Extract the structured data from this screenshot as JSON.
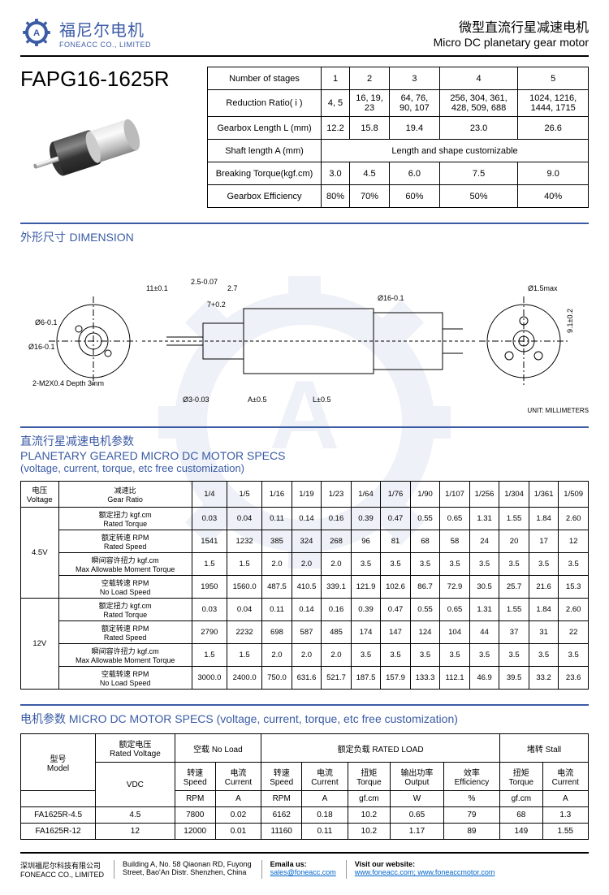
{
  "company": {
    "name_cn": "福尼尔电机",
    "name_en": "FONEACC CO., LIMITED",
    "brand_color": "#3b5ba5"
  },
  "header": {
    "title_cn": "微型直流行星减速电机",
    "title_en": "Micro DC planetary gear motor"
  },
  "model": "FAPG16-1625R",
  "stages_table": {
    "headers": [
      "Number of stages",
      "1",
      "2",
      "3",
      "4",
      "5"
    ],
    "rows": [
      {
        "label": "Reduction Ratio( i )",
        "vals": [
          "4, 5",
          "16, 19, 23",
          "64, 76, 90, 107",
          "256, 304, 361, 428, 509, 688",
          "1024, 1216, 1444, 1715"
        ]
      },
      {
        "label": "Gearbox Length L (mm)",
        "vals": [
          "12.2",
          "15.8",
          "19.4",
          "23.0",
          "26.6"
        ]
      },
      {
        "label": "Shaft length A (mm)",
        "vals": [
          "Length and shape customizable"
        ],
        "span": 5
      },
      {
        "label": "Breaking Torque(kgf.cm)",
        "vals": [
          "3.0",
          "4.5",
          "6.0",
          "7.5",
          "9.0"
        ]
      },
      {
        "label": "Gearbox Efficiency",
        "vals": [
          "80%",
          "70%",
          "60%",
          "50%",
          "40%"
        ]
      }
    ]
  },
  "dimension": {
    "title_cn": "外形尺寸",
    "title_en": "DIMENSION",
    "unit": "UNIT: MILLIMETERS",
    "labels": {
      "d6": "Ø6-0.1",
      "d16a": "Ø16-0.1",
      "hole": "2-M2X0.4 Depth 3mm",
      "s11": "11±0.1",
      "s25": "2.5-0.07",
      "s27": "2.7",
      "s7": "7+0.2",
      "d3": "Ø3-0.03",
      "a": "A±0.5",
      "l": "L±0.5",
      "d16b": "Ø16-0.1",
      "d15": "Ø1.5max",
      "s91": "9.1±0.2"
    }
  },
  "specs_section": {
    "title_cn": "直流行星减速电机参数",
    "title_en": "PLANETARY GEARED MICRO DC MOTOR SPECS",
    "subtitle": "(voltage, current, torque, etc free customization)",
    "voltage_header_cn": "电压",
    "voltage_header_en": "Voltage",
    "ratio_header_cn": "减速比",
    "ratio_header_en": "Gear Ratio",
    "ratios": [
      "1/4",
      "1/5",
      "1/16",
      "1/19",
      "1/23",
      "1/64",
      "1/76",
      "1/90",
      "1/107",
      "1/256",
      "1/304",
      "1/361",
      "1/509"
    ],
    "row_labels": [
      {
        "cn": "额定扭力 kgf.cm",
        "en": "Rated Torque"
      },
      {
        "cn": "额定转速 RPM",
        "en": "Rated Speed"
      },
      {
        "cn": "瞬间容许扭力 kgf.cm",
        "en": "Max Allowable Moment Torque"
      },
      {
        "cn": "空载转速 RPM",
        "en": "No Load Speed"
      }
    ],
    "groups": [
      {
        "voltage": "4.5V",
        "rows": [
          [
            "0.03",
            "0.04",
            "0.11",
            "0.14",
            "0.16",
            "0.39",
            "0.47",
            "0.55",
            "0.65",
            "1.31",
            "1.55",
            "1.84",
            "2.60"
          ],
          [
            "1541",
            "1232",
            "385",
            "324",
            "268",
            "96",
            "81",
            "68",
            "58",
            "24",
            "20",
            "17",
            "12"
          ],
          [
            "1.5",
            "1.5",
            "2.0",
            "2.0",
            "2.0",
            "3.5",
            "3.5",
            "3.5",
            "3.5",
            "3.5",
            "3.5",
            "3.5",
            "3.5"
          ],
          [
            "1950",
            "1560.0",
            "487.5",
            "410.5",
            "339.1",
            "121.9",
            "102.6",
            "86.7",
            "72.9",
            "30.5",
            "25.7",
            "21.6",
            "15.3"
          ]
        ]
      },
      {
        "voltage": "12V",
        "rows": [
          [
            "0.03",
            "0.04",
            "0.11",
            "0.14",
            "0.16",
            "0.39",
            "0.47",
            "0.55",
            "0.65",
            "1.31",
            "1.55",
            "1.84",
            "2.60"
          ],
          [
            "2790",
            "2232",
            "698",
            "587",
            "485",
            "174",
            "147",
            "124",
            "104",
            "44",
            "37",
            "31",
            "22"
          ],
          [
            "1.5",
            "1.5",
            "2.0",
            "2.0",
            "2.0",
            "3.5",
            "3.5",
            "3.5",
            "3.5",
            "3.5",
            "3.5",
            "3.5",
            "3.5"
          ],
          [
            "3000.0",
            "2400.0",
            "750.0",
            "631.6",
            "521.7",
            "187.5",
            "157.9",
            "133.3",
            "112.1",
            "46.9",
            "39.5",
            "33.2",
            "23.6"
          ]
        ]
      }
    ]
  },
  "motor_section": {
    "title": "电机参数 MICRO DC MOTOR SPECS (voltage, current, torque, etc free customization)",
    "headers": {
      "model_cn": "型号",
      "model_en": "Model",
      "voltage_cn": "额定电压",
      "voltage_en": "Rated Voltage",
      "voltage_unit": "VDC",
      "noload_cn": "空载",
      "noload_en": "No Load",
      "rated_cn": "额定负载",
      "rated_en": "RATED LOAD",
      "stall_cn": "堵转",
      "stall_en": "Stall",
      "speed_cn": "转速",
      "speed_en": "Speed",
      "speed_unit": "RPM",
      "current_cn": "电流",
      "current_en": "Current",
      "current_unit": "A",
      "torque_cn": "扭矩",
      "torque_en": "Torque",
      "torque_unit": "gf.cm",
      "output_cn": "输出功率",
      "output_en": "Output",
      "output_unit": "W",
      "eff_cn": "效率",
      "eff_en": "Efficiency",
      "eff_unit": "%"
    },
    "rows": [
      {
        "model": "FA1625R-4.5",
        "v": "4.5",
        "nl_rpm": "7800",
        "nl_a": "0.02",
        "r_rpm": "6162",
        "r_a": "0.18",
        "r_t": "10.2",
        "r_w": "0.65",
        "eff": "79",
        "s_t": "68",
        "s_a": "1.3"
      },
      {
        "model": "FA1625R-12",
        "v": "12",
        "nl_rpm": "12000",
        "nl_a": "0.01",
        "r_rpm": "11160",
        "r_a": "0.11",
        "r_t": "10.2",
        "r_w": "1.17",
        "eff": "89",
        "s_t": "149",
        "s_a": "1.55"
      }
    ]
  },
  "footer": {
    "co_cn": "深圳福尼尔科技有限公司",
    "co_en": "FONEACC CO., LIMITED",
    "addr1": "Building A, No. 58 Qiaonan RD, Fuyong",
    "addr2": "Street, Bao'An Distr. Shenzhen, China",
    "email_label": "Emaila us:",
    "email": "sales@foneacc.com",
    "web_label": "Visit our website:",
    "web": "www.foneacc.com; www.foneaccmotor.com"
  }
}
